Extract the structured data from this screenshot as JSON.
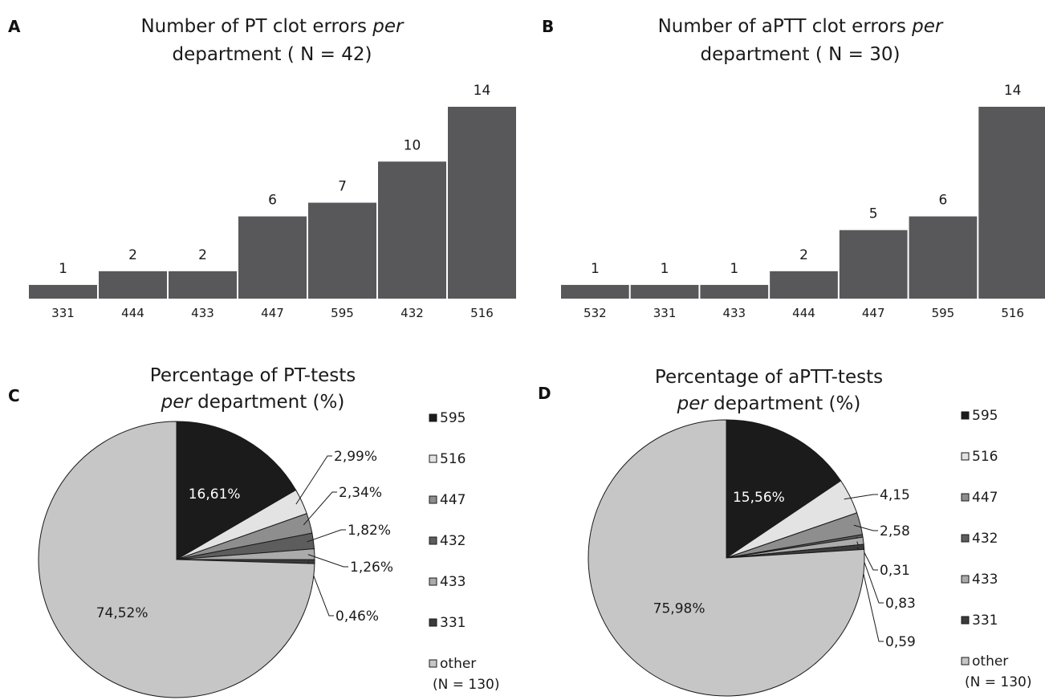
{
  "chart_data": [
    {
      "panel": "A",
      "type": "bar",
      "title_parts": [
        "Number of PT clot errors ",
        "per",
        " department ( N = 42)"
      ],
      "categories": [
        "331",
        "444",
        "433",
        "447",
        "595",
        "432",
        "516"
      ],
      "values": [
        1,
        2,
        2,
        6,
        7,
        10,
        14
      ],
      "color": "#58585a"
    },
    {
      "panel": "B",
      "type": "bar",
      "title_parts": [
        "Number of aPTT clot errors ",
        "per",
        " department ( N = 30)"
      ],
      "categories": [
        "532",
        "331",
        "433",
        "444",
        "447",
        "595",
        "516"
      ],
      "values": [
        1,
        1,
        1,
        2,
        5,
        6,
        14
      ],
      "color": "#58585a"
    },
    {
      "panel": "C",
      "type": "pie",
      "title_parts": [
        "Percentage of PT-tests",
        "per",
        " department (%)"
      ],
      "slices": [
        {
          "label": "595",
          "value": 16.61,
          "text": "16,61%",
          "color": "#1c1b1c"
        },
        {
          "label": "516",
          "value": 2.99,
          "text": "2,99%",
          "color": "#e3e3e3"
        },
        {
          "label": "447",
          "value": 2.34,
          "text": "2,34%",
          "color": "#8e8e8e"
        },
        {
          "label": "432",
          "value": 1.82,
          "text": "1,82%",
          "color": "#5d5d5d"
        },
        {
          "label": "433",
          "value": 1.26,
          "text": "1,26%",
          "color": "#ababab"
        },
        {
          "label": "331",
          "value": 0.46,
          "text": "0,46%",
          "color": "#3b3b3b"
        },
        {
          "label": "other",
          "value": 74.52,
          "text": "74,52%",
          "color": "#c6c6c7"
        }
      ],
      "legend": [
        "595",
        "516",
        "447",
        "432",
        "433",
        "331",
        "other"
      ],
      "legend_note": "(N = 130)"
    },
    {
      "panel": "D",
      "type": "pie",
      "title_parts": [
        "Percentage of aPTT-tests",
        "per",
        " department (%)"
      ],
      "slices": [
        {
          "label": "595",
          "value": 15.56,
          "text": "15,56%",
          "color": "#1c1b1c"
        },
        {
          "label": "516",
          "value": 4.15,
          "text": "4,15",
          "color": "#e3e3e3"
        },
        {
          "label": "447",
          "value": 2.58,
          "text": "2,58",
          "color": "#8e8e8e"
        },
        {
          "label": "432",
          "value": 0.31,
          "text": "0,31",
          "color": "#5d5d5d"
        },
        {
          "label": "433",
          "value": 0.83,
          "text": "0,83",
          "color": "#ababab"
        },
        {
          "label": "331",
          "value": 0.59,
          "text": "0,59",
          "color": "#3b3b3b"
        },
        {
          "label": "other",
          "value": 75.98,
          "text": "75,98%",
          "color": "#c6c6c7"
        }
      ],
      "legend": [
        "595",
        "516",
        "447",
        "432",
        "433",
        "331",
        "other"
      ],
      "legend_note": "(N = 130)"
    }
  ]
}
